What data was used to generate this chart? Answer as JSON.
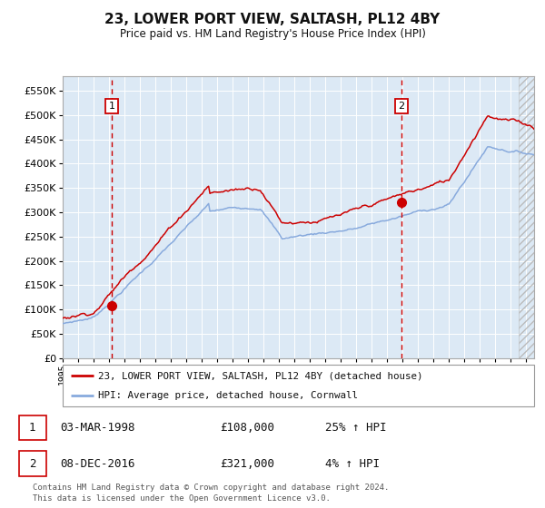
{
  "title": "23, LOWER PORT VIEW, SALTASH, PL12 4BY",
  "subtitle": "Price paid vs. HM Land Registry's House Price Index (HPI)",
  "ytick_vals": [
    0,
    50000,
    100000,
    150000,
    200000,
    250000,
    300000,
    350000,
    400000,
    450000,
    500000,
    550000
  ],
  "ylim": [
    0,
    580000
  ],
  "sale1_date": 1998.17,
  "sale1_price": 108000,
  "sale1_label": "1",
  "sale2_date": 2016.92,
  "sale2_price": 321000,
  "sale2_label": "2",
  "background_color": "#dce9f5",
  "red_color": "#cc0000",
  "blue_color": "#88aadd",
  "legend_label_red": "23, LOWER PORT VIEW, SALTASH, PL12 4BY (detached house)",
  "legend_label_blue": "HPI: Average price, detached house, Cornwall",
  "table_rows": [
    [
      "1",
      "03-MAR-1998",
      "£108,000",
      "25% ↑ HPI"
    ],
    [
      "2",
      "08-DEC-2016",
      "£321,000",
      "4% ↑ HPI"
    ]
  ],
  "footer": "Contains HM Land Registry data © Crown copyright and database right 2024.\nThis data is licensed under the Open Government Licence v3.0.",
  "xmin": 1995.0,
  "xmax": 2025.5,
  "hatch_start": 2024.5
}
